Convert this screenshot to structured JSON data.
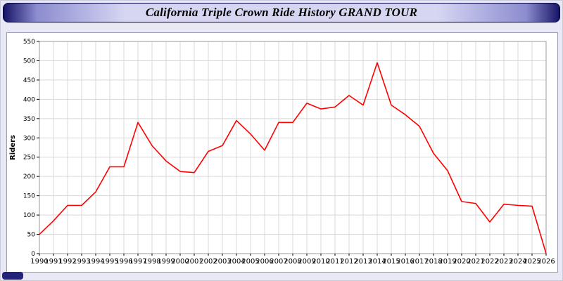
{
  "header": {
    "title": "California Triple Crown Ride History GRAND TOUR"
  },
  "chart_data": {
    "type": "line",
    "title": "California Triple Crown Ride History GRAND TOUR",
    "xlabel": "",
    "ylabel": "Riders",
    "ylim": [
      0,
      550
    ],
    "y_tick_step": 50,
    "grid": true,
    "legend_position": "none",
    "categories": [
      1990,
      1991,
      1992,
      1993,
      1994,
      1995,
      1996,
      1997,
      1998,
      1999,
      2000,
      2001,
      2002,
      2003,
      2004,
      2005,
      2006,
      2007,
      2008,
      2009,
      2010,
      2011,
      2012,
      2013,
      2014,
      2015,
      2016,
      2017,
      2018,
      2019,
      2020,
      2021,
      2022,
      2023,
      2024,
      2025,
      2026
    ],
    "series": [
      {
        "name": "Riders",
        "color": "#ff0000",
        "values": [
          50,
          85,
          125,
          125,
          160,
          225,
          225,
          340,
          280,
          240,
          213,
          210,
          265,
          280,
          345,
          310,
          268,
          340,
          340,
          390,
          375,
          380,
          410,
          385,
          495,
          385,
          360,
          330,
          260,
          215,
          135,
          130,
          82,
          128,
          125,
          123,
          0
        ]
      }
    ]
  },
  "colors": {
    "background": "#e9e9f5",
    "panel": "#ffffff",
    "titlebar_dark": "#151566",
    "titlebar_light": "#d6d6f3",
    "grid": "#d8d8d8",
    "plot_border": "#9a9a9a",
    "line": "#ff0000",
    "corner_tab": "#23237a",
    "tick_text": "#000000"
  }
}
